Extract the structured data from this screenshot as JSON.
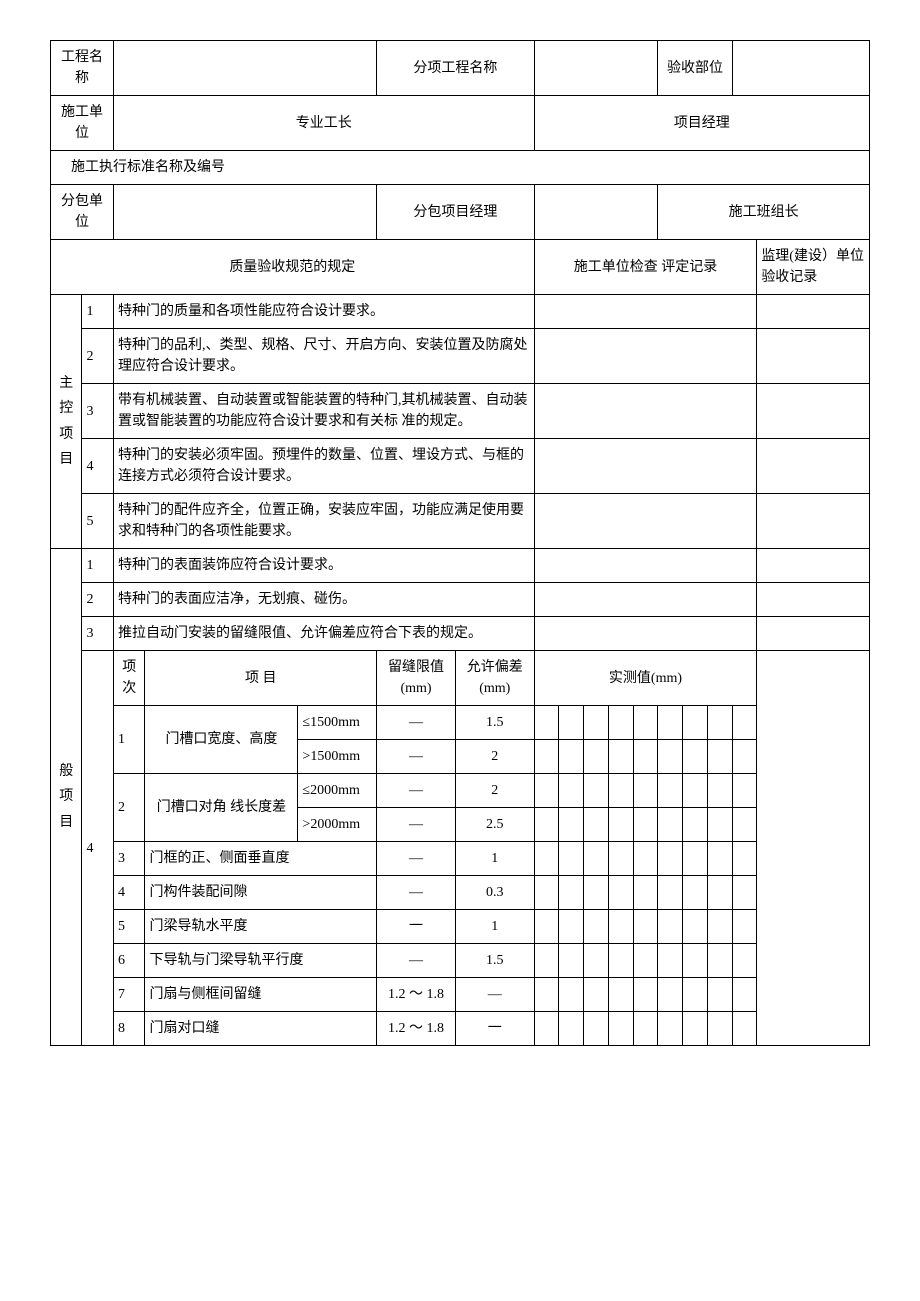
{
  "header": {
    "project_name_label": "工程名称",
    "project_name_value": "",
    "sub_project_label": "分项工程名称",
    "sub_project_value": "",
    "acceptance_part_label": "验收部位",
    "acceptance_part_value": "",
    "construction_unit_label": "施工单位",
    "foreman_label": "专业工长",
    "pm_label": "项目经理",
    "standard_label": "施工执行标准名称及编号",
    "subcontractor_label": "分包单位",
    "subcontractor_value": "",
    "sub_pm_label": "分包项目经理",
    "sub_pm_value": "",
    "team_leader_label": "施工班组长",
    "team_leader_value": "",
    "spec_rule_label": "质量验收规范的规定",
    "check_record_label": "施工单位检查 评定记录",
    "supervise_record_label": "监理(建设）单位验收记录"
  },
  "groups": {
    "main_control": "主控项目",
    "general": "般项目"
  },
  "main_control_items": [
    {
      "no": "1",
      "text": "特种门的质量和各项性能应符合设计要求。"
    },
    {
      "no": "2",
      "text": "特种门的品利,、类型、规格、尺寸、开启方向、安装位置及防腐处理应符合设计要求。"
    },
    {
      "no": "3",
      "text": "带有机械装置、自动装置或智能装置的特种门,其机械装置、自动装置或智能装置的功能应符合设计要求和有关标 准的规定。"
    },
    {
      "no": "4",
      "text": "特种门的安装必须牢固。预埋件的数量、位置、埋设方式、与框的连接方式必须符合设计要求。"
    },
    {
      "no": "5",
      "text": "特种门的配件应齐全，位置正确，安装应牢固，功能应满足使用要求和特种门的各项性能要求。"
    }
  ],
  "general_items": [
    {
      "no": "1",
      "text": "特种门的表面装饰应符合设计要求。"
    },
    {
      "no": "2",
      "text": "特种门的表面应洁净，无划痕、碰伤。"
    },
    {
      "no": "3",
      "text": "推拉自动门安装的留缝限值、允许偏差应符合下表的规定。"
    }
  ],
  "subtable": {
    "group_no": "4",
    "col_idx": "项次",
    "col_item": "项 目",
    "col_gap": "留缝限值(mm)",
    "col_tol": "允许偏差(mm)",
    "col_meas": "实测值(mm)",
    "rows": [
      {
        "idx": "1",
        "item": "门槽口宽度、高度",
        "sub": "≤1500mm",
        "gap": "—",
        "tol": "1.5"
      },
      {
        "idx": "",
        "item": "",
        "sub": ">1500mm",
        "gap": "—",
        "tol": "2"
      },
      {
        "idx": "2",
        "item": "门槽口对角 线长度差",
        "sub": "≤2000mm",
        "gap": "—",
        "tol": "2"
      },
      {
        "idx": "",
        "item": "",
        "sub": ">2000mm",
        "gap": "—",
        "tol": "2.5"
      },
      {
        "idx": "3",
        "item": "门框的正、侧面垂直度",
        "sub": "",
        "gap": "—",
        "tol": "1"
      },
      {
        "idx": "4",
        "item": "门构件装配间隙",
        "sub": "",
        "gap": "—",
        "tol": "0.3"
      },
      {
        "idx": "5",
        "item": "门梁导轨水平度",
        "sub": "",
        "gap": "一",
        "tol": "1"
      },
      {
        "idx": "6",
        "item": "下导轨与门梁导轨平行度",
        "sub": "",
        "gap": "—",
        "tol": "1.5"
      },
      {
        "idx": "7",
        "item": "门扇与侧框间留缝",
        "sub": "",
        "gap": "1.2 ～ 1.8",
        "tol": "—"
      },
      {
        "idx": "8",
        "item": "门扇对口缝",
        "sub": "",
        "gap": "1.2 ～ 1.8",
        "tol": "一"
      }
    ]
  },
  "style": {
    "font_family": "SimSun",
    "font_size_pt": 10.5,
    "border_color": "#000000",
    "background_color": "#ffffff",
    "text_color": "#000000"
  }
}
